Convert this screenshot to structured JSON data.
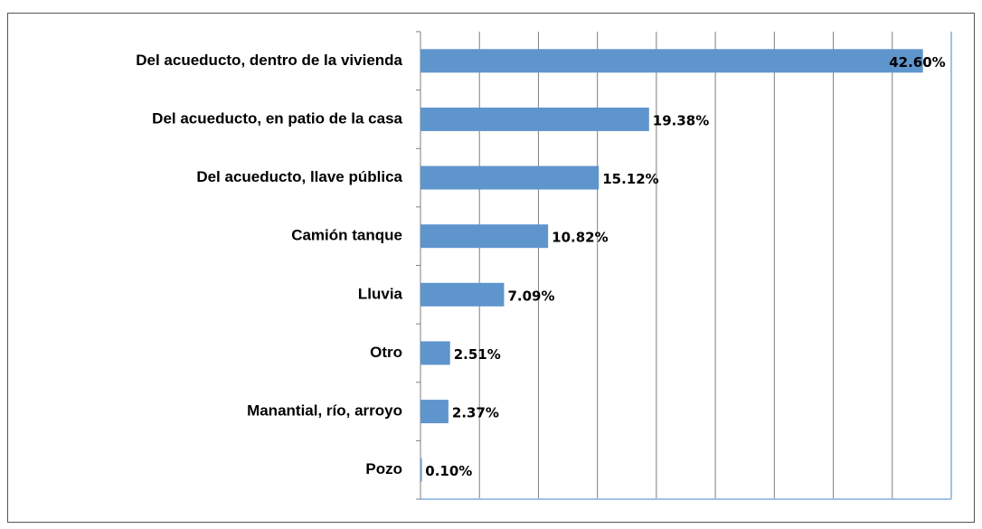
{
  "chart_data": {
    "type": "bar",
    "orientation": "horizontal",
    "categories": [
      "Del acueducto, dentro de la vivienda",
      "Del acueducto, en patio de la casa",
      "Del acueducto, llave pública",
      "Camión tanque",
      "Lluvia",
      "Otro",
      "Manantial, río, arroyo",
      "Pozo"
    ],
    "values": [
      42.6,
      19.38,
      15.12,
      10.82,
      7.09,
      2.51,
      2.37,
      0.1
    ],
    "value_labels": [
      "42.60%",
      "19.38%",
      "15.12%",
      "10.82%",
      "7.09%",
      "2.51%",
      "2.37%",
      "0.10%"
    ],
    "color": "#5f95cd",
    "xlim": [
      0,
      45
    ],
    "xticks": [
      0,
      5,
      10,
      15,
      20,
      25,
      30,
      35,
      40,
      45
    ],
    "grid": true
  }
}
